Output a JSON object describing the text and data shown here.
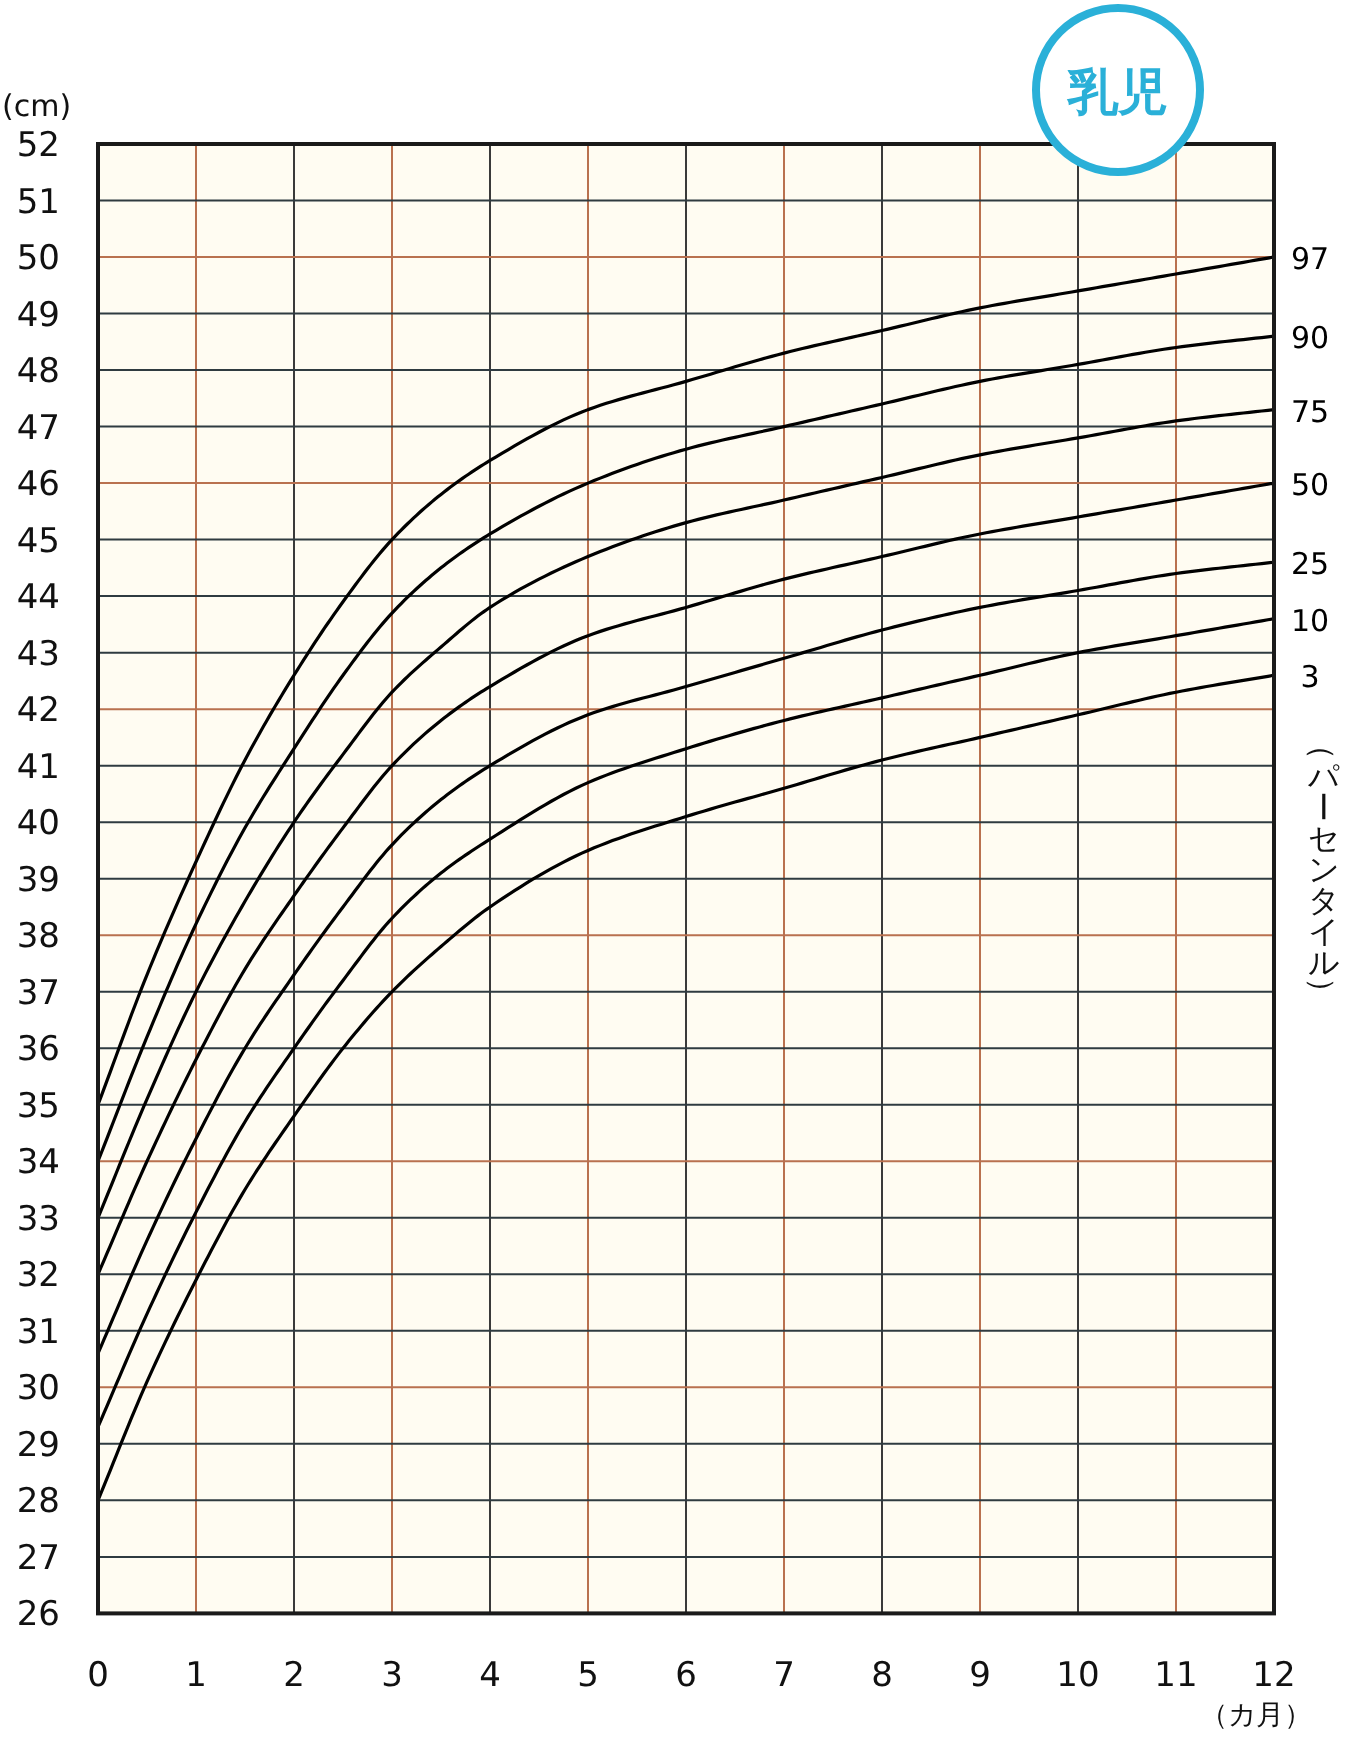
{
  "chart_data": {
    "type": "line",
    "title": "乳児",
    "xlabel": "（カ月）",
    "ylabel": "(cm)",
    "legend_title": "（パーセンタイル）",
    "x": [
      0,
      0.5,
      1,
      1.5,
      2,
      2.5,
      3,
      3.5,
      4,
      5,
      6,
      7,
      8,
      9,
      10,
      11,
      12
    ],
    "series": [
      {
        "name": "97",
        "color": "#000000",
        "values": [
          35.0,
          37.3,
          39.3,
          41.1,
          42.6,
          43.9,
          45.0,
          45.8,
          46.4,
          47.3,
          47.8,
          48.3,
          48.7,
          49.1,
          49.4,
          49.7,
          50.0
        ]
      },
      {
        "name": "90",
        "color": "#000000",
        "values": [
          34.0,
          36.2,
          38.2,
          39.9,
          41.3,
          42.6,
          43.7,
          44.5,
          45.1,
          46.0,
          46.6,
          47.0,
          47.4,
          47.8,
          48.1,
          48.4,
          48.6
        ]
      },
      {
        "name": "75",
        "color": "#000000",
        "values": [
          33.0,
          35.1,
          37.0,
          38.6,
          40.0,
          41.2,
          42.3,
          43.1,
          43.8,
          44.7,
          45.3,
          45.7,
          46.1,
          46.5,
          46.8,
          47.1,
          47.3
        ]
      },
      {
        "name": "50",
        "color": "#000000",
        "values": [
          32.0,
          34.0,
          35.8,
          37.4,
          38.7,
          39.9,
          41.0,
          41.8,
          42.4,
          43.3,
          43.8,
          44.3,
          44.7,
          45.1,
          45.4,
          45.7,
          46.0
        ]
      },
      {
        "name": "25",
        "color": "#000000",
        "values": [
          30.6,
          32.6,
          34.4,
          36.0,
          37.3,
          38.5,
          39.6,
          40.4,
          41.0,
          41.9,
          42.4,
          42.9,
          43.4,
          43.8,
          44.1,
          44.4,
          44.6
        ]
      },
      {
        "name": "10",
        "color": "#000000",
        "values": [
          29.3,
          31.3,
          33.1,
          34.7,
          36.0,
          37.2,
          38.3,
          39.1,
          39.7,
          40.7,
          41.3,
          41.8,
          42.2,
          42.6,
          43.0,
          43.3,
          43.6
        ]
      },
      {
        "name": "3",
        "color": "#000000",
        "values": [
          28.0,
          30.1,
          31.9,
          33.5,
          34.8,
          36.0,
          37.0,
          37.8,
          38.5,
          39.5,
          40.1,
          40.6,
          41.1,
          41.5,
          41.9,
          42.3,
          42.6
        ]
      }
    ],
    "xlim": [
      0,
      12
    ],
    "ylim": [
      26,
      52
    ],
    "xticks": [
      0,
      1,
      2,
      3,
      4,
      5,
      6,
      7,
      8,
      9,
      10,
      11,
      12
    ],
    "yticks": [
      26,
      27,
      28,
      29,
      30,
      31,
      32,
      33,
      34,
      35,
      36,
      37,
      38,
      39,
      40,
      41,
      42,
      43,
      44,
      45,
      46,
      47,
      48,
      49,
      50,
      51,
      52
    ],
    "grid": true,
    "line_style": "solid"
  }
}
